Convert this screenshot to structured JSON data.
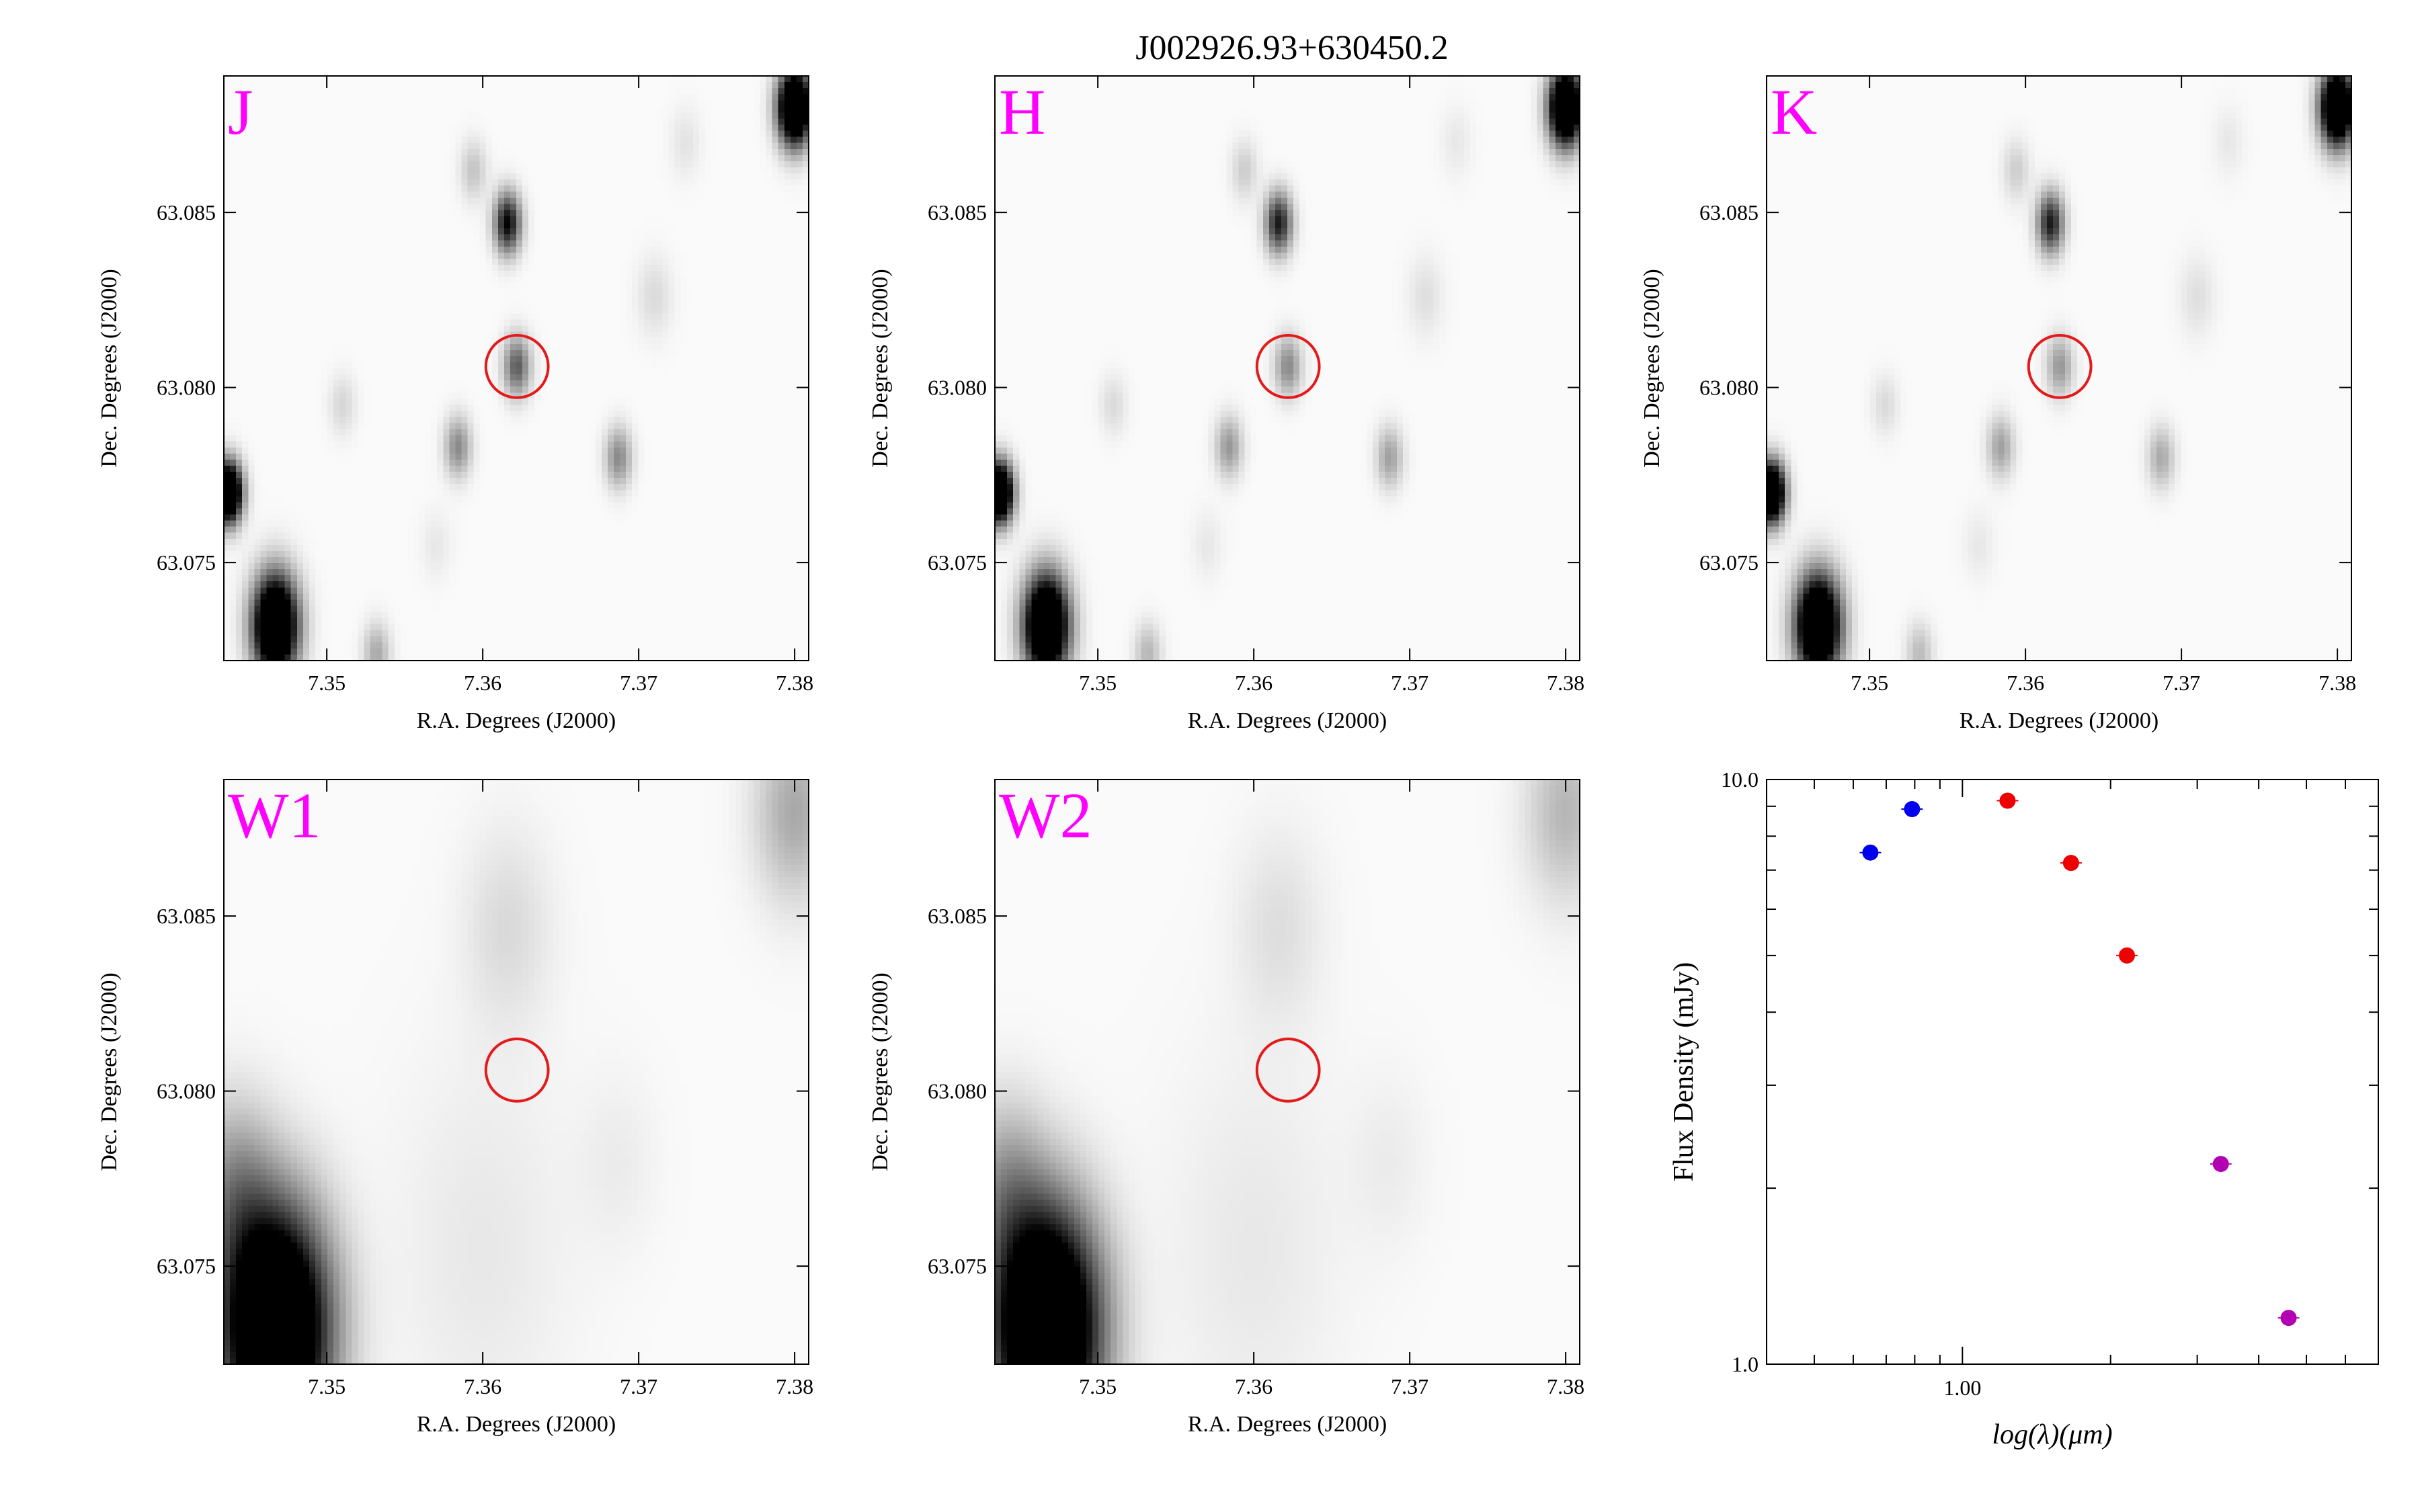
{
  "figure": {
    "title": "J002926.93+630450.2"
  },
  "colors": {
    "band_label": "#ff00ff",
    "aperture": "#e41a1a",
    "sed_2mass": "#0000ee",
    "sed_iras": "#ee0000",
    "sed_wise": "#b300b3"
  },
  "chart_data": [
    {
      "type": "heatmap",
      "band": "J",
      "xlabel": "R.A. Degrees (J2000)",
      "ylabel": "Dec. Degrees (J2000)",
      "xlim": [
        7.3434,
        7.3809
      ],
      "ylim": [
        63.0722,
        63.0889
      ],
      "xticks": [
        "7.35",
        "7.36",
        "7.37",
        "7.38"
      ],
      "yticks": [
        "63.075",
        "63.080",
        "63.085"
      ],
      "aperture": {
        "ra": 7.3622,
        "dec": 63.0806,
        "radius_deg": 0.002
      },
      "sources": [
        {
          "ra": 7.3467,
          "dec": 63.0732,
          "peak": 1.0,
          "sigma": 0.001
        },
        {
          "ra": 7.38,
          "dec": 63.088,
          "peak": 1.0,
          "sigma": 0.00075
        },
        {
          "ra": 7.3437,
          "dec": 63.077,
          "peak": 1.0,
          "sigma": 0.0006
        },
        {
          "ra": 7.3616,
          "dec": 63.0847,
          "peak": 0.55,
          "sigma": 0.0006
        },
        {
          "ra": 7.3622,
          "dec": 63.0806,
          "peak": 0.35,
          "sigma": 0.0006
        },
        {
          "ra": 7.3584,
          "dec": 63.0783,
          "peak": 0.25,
          "sigma": 0.0006
        },
        {
          "ra": 7.3687,
          "dec": 63.078,
          "peak": 0.25,
          "sigma": 0.0006
        },
        {
          "ra": 7.3594,
          "dec": 63.0862,
          "peak": 0.12,
          "sigma": 0.0006
        },
        {
          "ra": 7.3532,
          "dec": 63.0724,
          "peak": 0.18,
          "sigma": 0.0006
        },
        {
          "ra": 7.351,
          "dec": 63.0795,
          "peak": 0.08,
          "sigma": 0.0006
        },
        {
          "ra": 7.371,
          "dec": 63.0826,
          "peak": 0.07,
          "sigma": 0.0008
        },
        {
          "ra": 7.373,
          "dec": 63.087,
          "peak": 0.05,
          "sigma": 0.0007
        },
        {
          "ra": 7.357,
          "dec": 63.0755,
          "peak": 0.04,
          "sigma": 0.0007
        }
      ]
    },
    {
      "type": "heatmap",
      "band": "H",
      "xlabel": "R.A. Degrees (J2000)",
      "ylabel": "Dec. Degrees (J2000)",
      "xlim": [
        7.3434,
        7.3809
      ],
      "ylim": [
        63.0722,
        63.0889
      ],
      "xticks": [
        "7.35",
        "7.36",
        "7.37",
        "7.38"
      ],
      "yticks": [
        "63.075",
        "63.080",
        "63.085"
      ],
      "aperture": {
        "ra": 7.3622,
        "dec": 63.0806,
        "radius_deg": 0.002
      },
      "sources": [
        {
          "ra": 7.3467,
          "dec": 63.0732,
          "peak": 1.0,
          "sigma": 0.001
        },
        {
          "ra": 7.38,
          "dec": 63.088,
          "peak": 1.0,
          "sigma": 0.00075
        },
        {
          "ra": 7.3437,
          "dec": 63.077,
          "peak": 1.0,
          "sigma": 0.0006
        },
        {
          "ra": 7.3616,
          "dec": 63.0847,
          "peak": 0.5,
          "sigma": 0.0006
        },
        {
          "ra": 7.3622,
          "dec": 63.0806,
          "peak": 0.25,
          "sigma": 0.0006
        },
        {
          "ra": 7.3584,
          "dec": 63.0783,
          "peak": 0.22,
          "sigma": 0.0006
        },
        {
          "ra": 7.3687,
          "dec": 63.078,
          "peak": 0.2,
          "sigma": 0.0006
        },
        {
          "ra": 7.3594,
          "dec": 63.0862,
          "peak": 0.1,
          "sigma": 0.0006
        },
        {
          "ra": 7.3532,
          "dec": 63.0724,
          "peak": 0.15,
          "sigma": 0.0006
        },
        {
          "ra": 7.351,
          "dec": 63.0795,
          "peak": 0.07,
          "sigma": 0.0006
        },
        {
          "ra": 7.371,
          "dec": 63.0826,
          "peak": 0.06,
          "sigma": 0.0008
        },
        {
          "ra": 7.373,
          "dec": 63.087,
          "peak": 0.04,
          "sigma": 0.0007
        },
        {
          "ra": 7.357,
          "dec": 63.0755,
          "peak": 0.04,
          "sigma": 0.0007
        }
      ]
    },
    {
      "type": "heatmap",
      "band": "K",
      "xlabel": "R.A. Degrees (J2000)",
      "ylabel": "Dec. Degrees (J2000)",
      "xlim": [
        7.3434,
        7.3809
      ],
      "ylim": [
        63.0722,
        63.0889
      ],
      "xticks": [
        "7.35",
        "7.36",
        "7.37",
        "7.38"
      ],
      "yticks": [
        "63.075",
        "63.080",
        "63.085"
      ],
      "aperture": {
        "ra": 7.3622,
        "dec": 63.0806,
        "radius_deg": 0.002
      },
      "sources": [
        {
          "ra": 7.3467,
          "dec": 63.0732,
          "peak": 1.0,
          "sigma": 0.001
        },
        {
          "ra": 7.38,
          "dec": 63.088,
          "peak": 1.0,
          "sigma": 0.00075
        },
        {
          "ra": 7.3437,
          "dec": 63.077,
          "peak": 1.0,
          "sigma": 0.0006
        },
        {
          "ra": 7.3616,
          "dec": 63.0847,
          "peak": 0.5,
          "sigma": 0.0006
        },
        {
          "ra": 7.3622,
          "dec": 63.0806,
          "peak": 0.22,
          "sigma": 0.0006
        },
        {
          "ra": 7.3584,
          "dec": 63.0783,
          "peak": 0.2,
          "sigma": 0.0006
        },
        {
          "ra": 7.3687,
          "dec": 63.078,
          "peak": 0.18,
          "sigma": 0.0006
        },
        {
          "ra": 7.3594,
          "dec": 63.0862,
          "peak": 0.1,
          "sigma": 0.0006
        },
        {
          "ra": 7.3532,
          "dec": 63.0724,
          "peak": 0.14,
          "sigma": 0.0006
        },
        {
          "ra": 7.351,
          "dec": 63.0795,
          "peak": 0.07,
          "sigma": 0.0006
        },
        {
          "ra": 7.371,
          "dec": 63.0826,
          "peak": 0.06,
          "sigma": 0.0008
        },
        {
          "ra": 7.373,
          "dec": 63.087,
          "peak": 0.04,
          "sigma": 0.0007
        },
        {
          "ra": 7.357,
          "dec": 63.0755,
          "peak": 0.04,
          "sigma": 0.0007
        }
      ]
    },
    {
      "type": "heatmap",
      "band": "W1",
      "xlabel": "R.A. Degrees (J2000)",
      "ylabel": "Dec. Degrees (J2000)",
      "xlim": [
        7.3434,
        7.3809
      ],
      "ylim": [
        63.0722,
        63.0889
      ],
      "xticks": [
        "7.35",
        "7.36",
        "7.37",
        "7.38"
      ],
      "yticks": [
        "63.075",
        "63.080",
        "63.085"
      ],
      "aperture": {
        "ra": 7.3622,
        "dec": 63.0806,
        "radius_deg": 0.002
      },
      "sources": [
        {
          "ra": 7.3467,
          "dec": 63.0732,
          "peak": 1.0,
          "sigma": 0.0024
        },
        {
          "ra": 7.344,
          "dec": 63.0772,
          "peak": 0.2,
          "sigma": 0.0018
        },
        {
          "ra": 7.38,
          "dec": 63.088,
          "peak": 0.18,
          "sigma": 0.0018
        },
        {
          "ra": 7.3616,
          "dec": 63.0847,
          "peak": 0.07,
          "sigma": 0.002
        },
        {
          "ra": 7.3687,
          "dec": 63.078,
          "peak": 0.03,
          "sigma": 0.0018
        },
        {
          "ra": 7.36,
          "dec": 63.0755,
          "peak": 0.04,
          "sigma": 0.004
        }
      ]
    },
    {
      "type": "heatmap",
      "band": "W2",
      "xlabel": "R.A. Degrees (J2000)",
      "ylabel": "Dec. Degrees (J2000)",
      "xlim": [
        7.3434,
        7.3809
      ],
      "ylim": [
        63.0722,
        63.0889
      ],
      "xticks": [
        "7.35",
        "7.36",
        "7.37",
        "7.38"
      ],
      "yticks": [
        "63.075",
        "63.080",
        "63.085"
      ],
      "aperture": {
        "ra": 7.3622,
        "dec": 63.0806,
        "radius_deg": 0.002
      },
      "sources": [
        {
          "ra": 7.3467,
          "dec": 63.0732,
          "peak": 1.0,
          "sigma": 0.0024
        },
        {
          "ra": 7.344,
          "dec": 63.0772,
          "peak": 0.18,
          "sigma": 0.0018
        },
        {
          "ra": 7.38,
          "dec": 63.088,
          "peak": 0.15,
          "sigma": 0.0018
        },
        {
          "ra": 7.3616,
          "dec": 63.0847,
          "peak": 0.06,
          "sigma": 0.002
        },
        {
          "ra": 7.3687,
          "dec": 63.078,
          "peak": 0.03,
          "sigma": 0.0018
        },
        {
          "ra": 7.36,
          "dec": 63.0755,
          "peak": 0.04,
          "sigma": 0.004
        }
      ]
    },
    {
      "type": "scatter",
      "xlabel": "log(λ)(μm)",
      "ylabel": "Flux Density (mJy)",
      "x_scale": "log",
      "y_scale": "log",
      "xlim": [
        0.4,
        7.0
      ],
      "ylim": [
        1.0,
        10.0
      ],
      "xticks": [
        "1.00"
      ],
      "yticks": [
        "1.0",
        "10.0"
      ],
      "series": [
        {
          "color": "#0000ee",
          "x": [
            0.65,
            0.79
          ],
          "y": [
            7.5,
            8.9
          ]
        },
        {
          "color": "#ee0000",
          "x": [
            1.235,
            1.662,
            2.159
          ],
          "y": [
            9.2,
            7.2,
            5.0
          ]
        },
        {
          "color": "#b300b3",
          "x": [
            3.35,
            4.6
          ],
          "y": [
            2.2,
            1.2
          ]
        }
      ]
    }
  ]
}
